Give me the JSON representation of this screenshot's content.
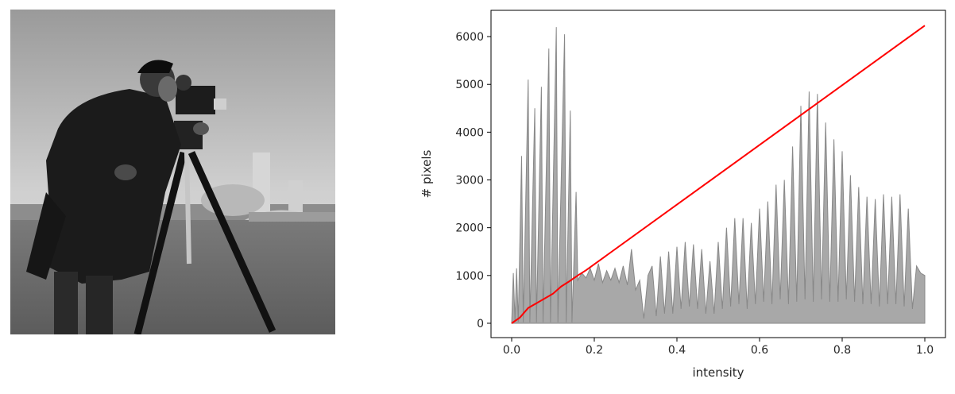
{
  "image_panel": {
    "description_icon": "grayscale-photo-icon",
    "colors": {
      "sky": "#c8c8c8",
      "grass": "#6a6a6a",
      "coat": "#1a1a1a"
    }
  },
  "chart_data": {
    "type": "area",
    "xlabel": "intensity",
    "ylabel": "# pixels",
    "xlim": [
      -0.05,
      1.05
    ],
    "ylim": [
      -300,
      6550
    ],
    "xticks": [
      "0.0",
      "0.2",
      "0.4",
      "0.6",
      "0.8",
      "1.0"
    ],
    "yticks": [
      "0",
      "1000",
      "2000",
      "3000",
      "4000",
      "5000",
      "6000"
    ],
    "grid": false,
    "legend": "none",
    "series": [
      {
        "kind": "histogram",
        "color": "#a8a8a8",
        "edge_color": "#888888",
        "points": [
          [
            0.0,
            0
          ],
          [
            0.004,
            1050
          ],
          [
            0.008,
            50
          ],
          [
            0.012,
            1150
          ],
          [
            0.016,
            30
          ],
          [
            0.024,
            3500
          ],
          [
            0.028,
            20
          ],
          [
            0.04,
            5100
          ],
          [
            0.044,
            20
          ],
          [
            0.056,
            4500
          ],
          [
            0.06,
            20
          ],
          [
            0.072,
            4950
          ],
          [
            0.076,
            20
          ],
          [
            0.09,
            5750
          ],
          [
            0.094,
            20
          ],
          [
            0.108,
            6200
          ],
          [
            0.112,
            20
          ],
          [
            0.128,
            6050
          ],
          [
            0.132,
            20
          ],
          [
            0.142,
            4450
          ],
          [
            0.146,
            20
          ],
          [
            0.156,
            2750
          ],
          [
            0.16,
            900
          ],
          [
            0.17,
            1050
          ],
          [
            0.18,
            950
          ],
          [
            0.19,
            1150
          ],
          [
            0.2,
            900
          ],
          [
            0.21,
            1250
          ],
          [
            0.22,
            850
          ],
          [
            0.23,
            1100
          ],
          [
            0.24,
            900
          ],
          [
            0.25,
            1150
          ],
          [
            0.26,
            850
          ],
          [
            0.27,
            1200
          ],
          [
            0.28,
            800
          ],
          [
            0.29,
            1550
          ],
          [
            0.3,
            700
          ],
          [
            0.31,
            900
          ],
          [
            0.32,
            100
          ],
          [
            0.33,
            1000
          ],
          [
            0.34,
            1200
          ],
          [
            0.35,
            150
          ],
          [
            0.36,
            1400
          ],
          [
            0.37,
            200
          ],
          [
            0.38,
            1500
          ],
          [
            0.39,
            200
          ],
          [
            0.4,
            1600
          ],
          [
            0.41,
            300
          ],
          [
            0.42,
            1700
          ],
          [
            0.43,
            350
          ],
          [
            0.44,
            1650
          ],
          [
            0.45,
            300
          ],
          [
            0.46,
            1550
          ],
          [
            0.47,
            200
          ],
          [
            0.48,
            1300
          ],
          [
            0.49,
            200
          ],
          [
            0.5,
            1700
          ],
          [
            0.51,
            300
          ],
          [
            0.52,
            2000
          ],
          [
            0.53,
            350
          ],
          [
            0.54,
            2200
          ],
          [
            0.55,
            400
          ],
          [
            0.56,
            2200
          ],
          [
            0.57,
            300
          ],
          [
            0.58,
            2100
          ],
          [
            0.59,
            400
          ],
          [
            0.6,
            2400
          ],
          [
            0.61,
            450
          ],
          [
            0.62,
            2550
          ],
          [
            0.63,
            400
          ],
          [
            0.64,
            2900
          ],
          [
            0.65,
            500
          ],
          [
            0.66,
            3000
          ],
          [
            0.67,
            400
          ],
          [
            0.68,
            3700
          ],
          [
            0.69,
            450
          ],
          [
            0.7,
            4550
          ],
          [
            0.71,
            500
          ],
          [
            0.72,
            4850
          ],
          [
            0.73,
            450
          ],
          [
            0.74,
            4800
          ],
          [
            0.75,
            500
          ],
          [
            0.76,
            4200
          ],
          [
            0.77,
            450
          ],
          [
            0.78,
            3850
          ],
          [
            0.79,
            450
          ],
          [
            0.8,
            3600
          ],
          [
            0.81,
            500
          ],
          [
            0.82,
            3100
          ],
          [
            0.83,
            450
          ],
          [
            0.84,
            2850
          ],
          [
            0.85,
            400
          ],
          [
            0.86,
            2650
          ],
          [
            0.87,
            400
          ],
          [
            0.88,
            2600
          ],
          [
            0.89,
            350
          ],
          [
            0.9,
            2700
          ],
          [
            0.91,
            400
          ],
          [
            0.92,
            2650
          ],
          [
            0.93,
            400
          ],
          [
            0.94,
            2700
          ],
          [
            0.95,
            350
          ],
          [
            0.96,
            2400
          ],
          [
            0.97,
            300
          ],
          [
            0.98,
            1200
          ],
          [
            0.99,
            1050
          ],
          [
            1.0,
            1000
          ],
          [
            1.0,
            0
          ]
        ]
      },
      {
        "kind": "cdf",
        "color": "#ff0000",
        "points": [
          [
            0.0,
            0
          ],
          [
            0.02,
            120
          ],
          [
            0.04,
            320
          ],
          [
            0.06,
            420
          ],
          [
            0.08,
            520
          ],
          [
            0.1,
            620
          ],
          [
            0.12,
            770
          ],
          [
            0.14,
            880
          ],
          [
            0.16,
            1000
          ],
          [
            0.18,
            1110
          ],
          [
            1.0,
            6230
          ]
        ]
      }
    ]
  }
}
